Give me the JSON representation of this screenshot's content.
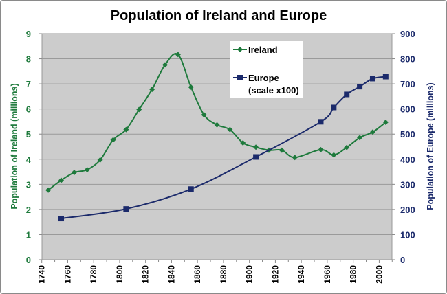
{
  "chart_data": {
    "type": "line",
    "title": "Population of Ireland and Europe",
    "xlabel": "",
    "ylabel": "Population of Ireland (millions)",
    "y2label": "Population of Europe (millions)",
    "xlim": [
      1740,
      2010
    ],
    "ylim": [
      0,
      9
    ],
    "y2lim": [
      0,
      900
    ],
    "xticks": [
      1740,
      1760,
      1780,
      1800,
      1820,
      1840,
      1860,
      1880,
      1900,
      1920,
      1940,
      1960,
      1980,
      2000
    ],
    "yticks": [
      0,
      1,
      2,
      3,
      4,
      5,
      6,
      7,
      8,
      9
    ],
    "y2ticks": [
      0,
      100,
      200,
      300,
      400,
      500,
      600,
      700,
      800,
      900
    ],
    "grid": true,
    "legend_position": "top-center",
    "series": [
      {
        "name": "Ireland",
        "axis": "left",
        "color": "#1E7A3C",
        "marker": "diamond",
        "x": [
          1745,
          1755,
          1765,
          1775,
          1785,
          1795,
          1805,
          1815,
          1825,
          1835,
          1845,
          1855,
          1865,
          1875,
          1885,
          1895,
          1905,
          1915,
          1925,
          1935,
          1955,
          1965,
          1975,
          1985,
          1995,
          2005
        ],
        "y": [
          2.77,
          3.16,
          3.47,
          3.58,
          3.97,
          4.77,
          5.18,
          5.98,
          6.78,
          7.76,
          8.17,
          6.87,
          5.77,
          5.37,
          5.18,
          4.65,
          4.48,
          4.36,
          4.36,
          4.07,
          4.38,
          4.17,
          4.47,
          4.86,
          5.08,
          5.47
        ]
      },
      {
        "name": "Europe",
        "name_line2": "(scale x100)",
        "axis": "right",
        "color": "#1B2A6B",
        "marker": "square",
        "x": [
          1755,
          1805,
          1855,
          1905,
          1955,
          1965,
          1975,
          1985,
          1995,
          2005
        ],
        "y": [
          164,
          202,
          281,
          409,
          549,
          606,
          658,
          689,
          721,
          729
        ]
      }
    ]
  }
}
